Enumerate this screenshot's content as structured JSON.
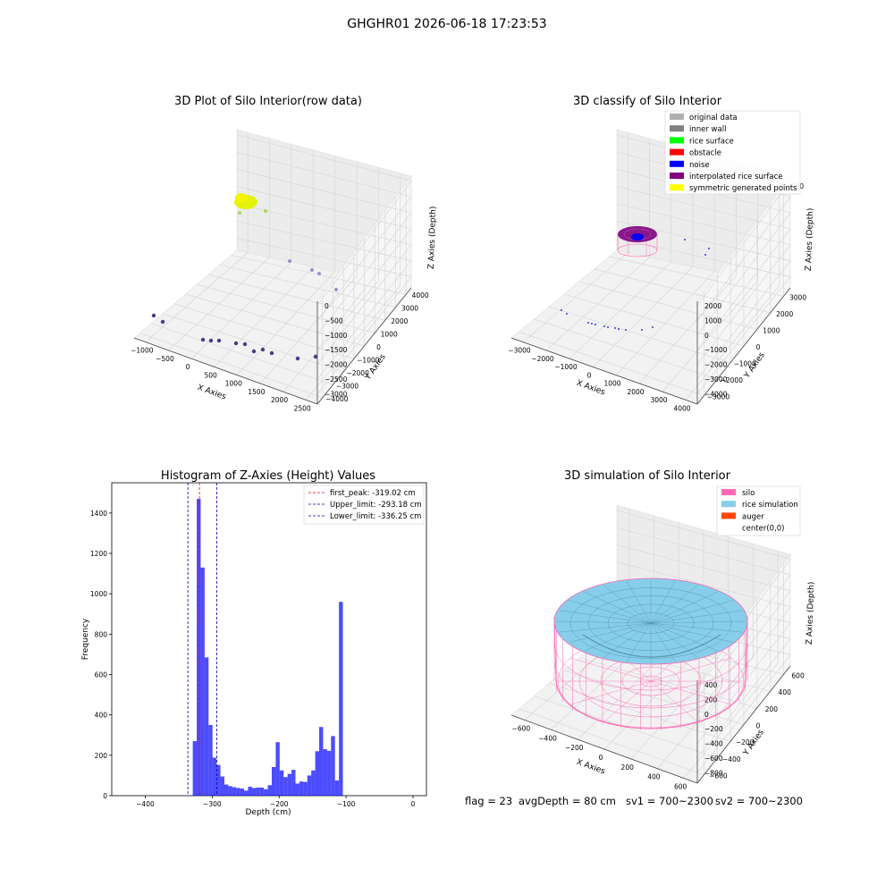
{
  "figure": {
    "suptitle": "GHGHR01 2026-06-18 17:23:53",
    "footer": {
      "flag": "flag = 23",
      "avg_depth": "avgDepth = 80 cm",
      "sv1": "sv1 = 700~2300",
      "sv2": "sv2 = 700~2300"
    }
  },
  "chart_data": [
    {
      "type": "scatter",
      "title": "3D Plot of Silo Interior(row data)",
      "xlabel": "X Axies",
      "ylabel": "Y Axies",
      "zlabel": "Z Axies (Depth)",
      "x_ticks": [
        "−1000",
        "−500",
        "0",
        "500",
        "1000",
        "1500",
        "2000",
        "2500"
      ],
      "y_ticks": [
        "−4000",
        "−3000",
        "−2000",
        "−1000",
        "0",
        "1000",
        "2000",
        "3000",
        "4000"
      ],
      "z_ticks": [
        "0",
        "−500",
        "−1000",
        "−1500",
        "−2000",
        "−2500",
        "−3000"
      ],
      "grid": true
    },
    {
      "type": "scatter",
      "title": "3D classify of Silo Interior",
      "xlabel": "X Axies",
      "ylabel": "Y Axies",
      "zlabel": "Z Axies (Depth)",
      "x_ticks": [
        "−3000",
        "−2000",
        "−1000",
        "0",
        "1000",
        "2000",
        "3000",
        "4000"
      ],
      "y_ticks": [
        "−3000",
        "−2000",
        "−1000",
        "0",
        "1000",
        "2000",
        "3000"
      ],
      "z_ticks": [
        "2000",
        "1000",
        "0",
        "−1000",
        "−2000",
        "−3000",
        "−4000"
      ],
      "z_top_partial": "000",
      "legend": {
        "placement": "top-right",
        "entries": [
          {
            "label": "original data",
            "color": "#b0b0b0"
          },
          {
            "label": "inner wall",
            "color": "#808080"
          },
          {
            "label": "rice surface",
            "color": "#00ff00"
          },
          {
            "label": "obstacle",
            "color": "#ff0000"
          },
          {
            "label": "noise",
            "color": "#0000ff"
          },
          {
            "label": "interpolated rice surface",
            "color": "#800080"
          },
          {
            "label": "symmetric generated points",
            "color": "#ffff00"
          }
        ]
      },
      "grid": true
    },
    {
      "type": "bar",
      "title": "Histogram of Z-Axies (Height) Values",
      "xlabel": "Depth (cm)",
      "ylabel": "Frequency",
      "xlim": [
        -450,
        20
      ],
      "ylim": [
        0,
        1550
      ],
      "x_ticks": [
        "−400",
        "−300",
        "−200",
        "−100",
        "0"
      ],
      "y_ticks": [
        "0",
        "200",
        "400",
        "600",
        "800",
        "1000",
        "1200",
        "1400"
      ],
      "bin_width": 5.9,
      "bin_start": -329,
      "values": [
        270,
        1470,
        1130,
        685,
        350,
        188,
        152,
        95,
        55,
        47,
        42,
        38,
        35,
        25,
        44,
        38,
        40,
        40,
        32,
        52,
        142,
        265,
        125,
        92,
        108,
        128,
        60,
        70,
        68,
        100,
        125,
        220,
        340,
        230,
        222,
        295,
        75,
        960
      ],
      "bar_color": "#0000ff",
      "vlines": [
        {
          "label": "first_peak: -319.02 cm",
          "value": -319.02,
          "color": "#ff0000"
        },
        {
          "label": "Upper_limit: -293.18 cm",
          "value": -293.18,
          "color": "#0000aa"
        },
        {
          "label": "Lower_limit: -336.25 cm",
          "value": -336.25,
          "color": "#0000aa"
        }
      ],
      "legend_placement": "top-right"
    },
    {
      "type": "scatter",
      "title": "3D simulation of Silo Interior",
      "xlabel": "X Axies",
      "ylabel": "Y Axies",
      "zlabel": "Z Axies (Depth)",
      "x_ticks": [
        "−600",
        "−400",
        "−200",
        "0",
        "200",
        "400",
        "600"
      ],
      "y_ticks": [
        "−600",
        "−400",
        "−200",
        "0",
        "200",
        "400",
        "600"
      ],
      "z_ticks": [
        "400",
        "200",
        "0",
        "−200",
        "−400",
        "−600",
        "−800"
      ],
      "legend": {
        "placement": "top-right",
        "entries": [
          {
            "label": "silo",
            "color": "#ff69b4"
          },
          {
            "label": "rice simulation",
            "color": "#87ceeb"
          },
          {
            "label": "auger",
            "color": "#ff4500"
          },
          {
            "label": "center(0,0)",
            "color": ""
          }
        ]
      },
      "grid": true
    }
  ]
}
